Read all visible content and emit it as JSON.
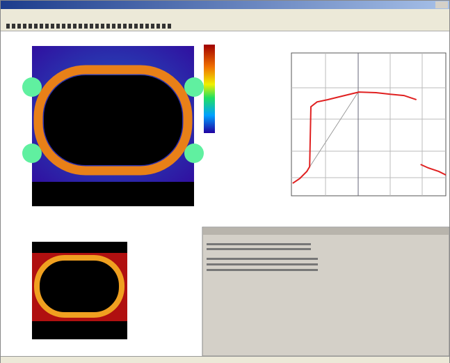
{
  "profile": {
    "type": "line",
    "color": "#e02020",
    "x": [
      0.04,
      0.26,
      0.48,
      0.57,
      0.61,
      0.8,
      1.13,
      1.57,
      2.11,
      2.65,
      3.09,
      3.52,
      3.91,
      3.98,
      4.04,
      4.28,
      4.61,
      4.83
    ],
    "y": [
      0.39,
      0.54,
      0.76,
      0.91,
      2.78,
      2.93,
      3.0,
      3.11,
      3.24,
      3.22,
      3.17,
      3.13,
      3.0,
      null,
      0.98,
      0.87,
      0.76,
      0.65
    ],
    "xlim": [
      0,
      4.83
    ],
    "ylim": [
      0,
      4.46
    ]
  }
}
